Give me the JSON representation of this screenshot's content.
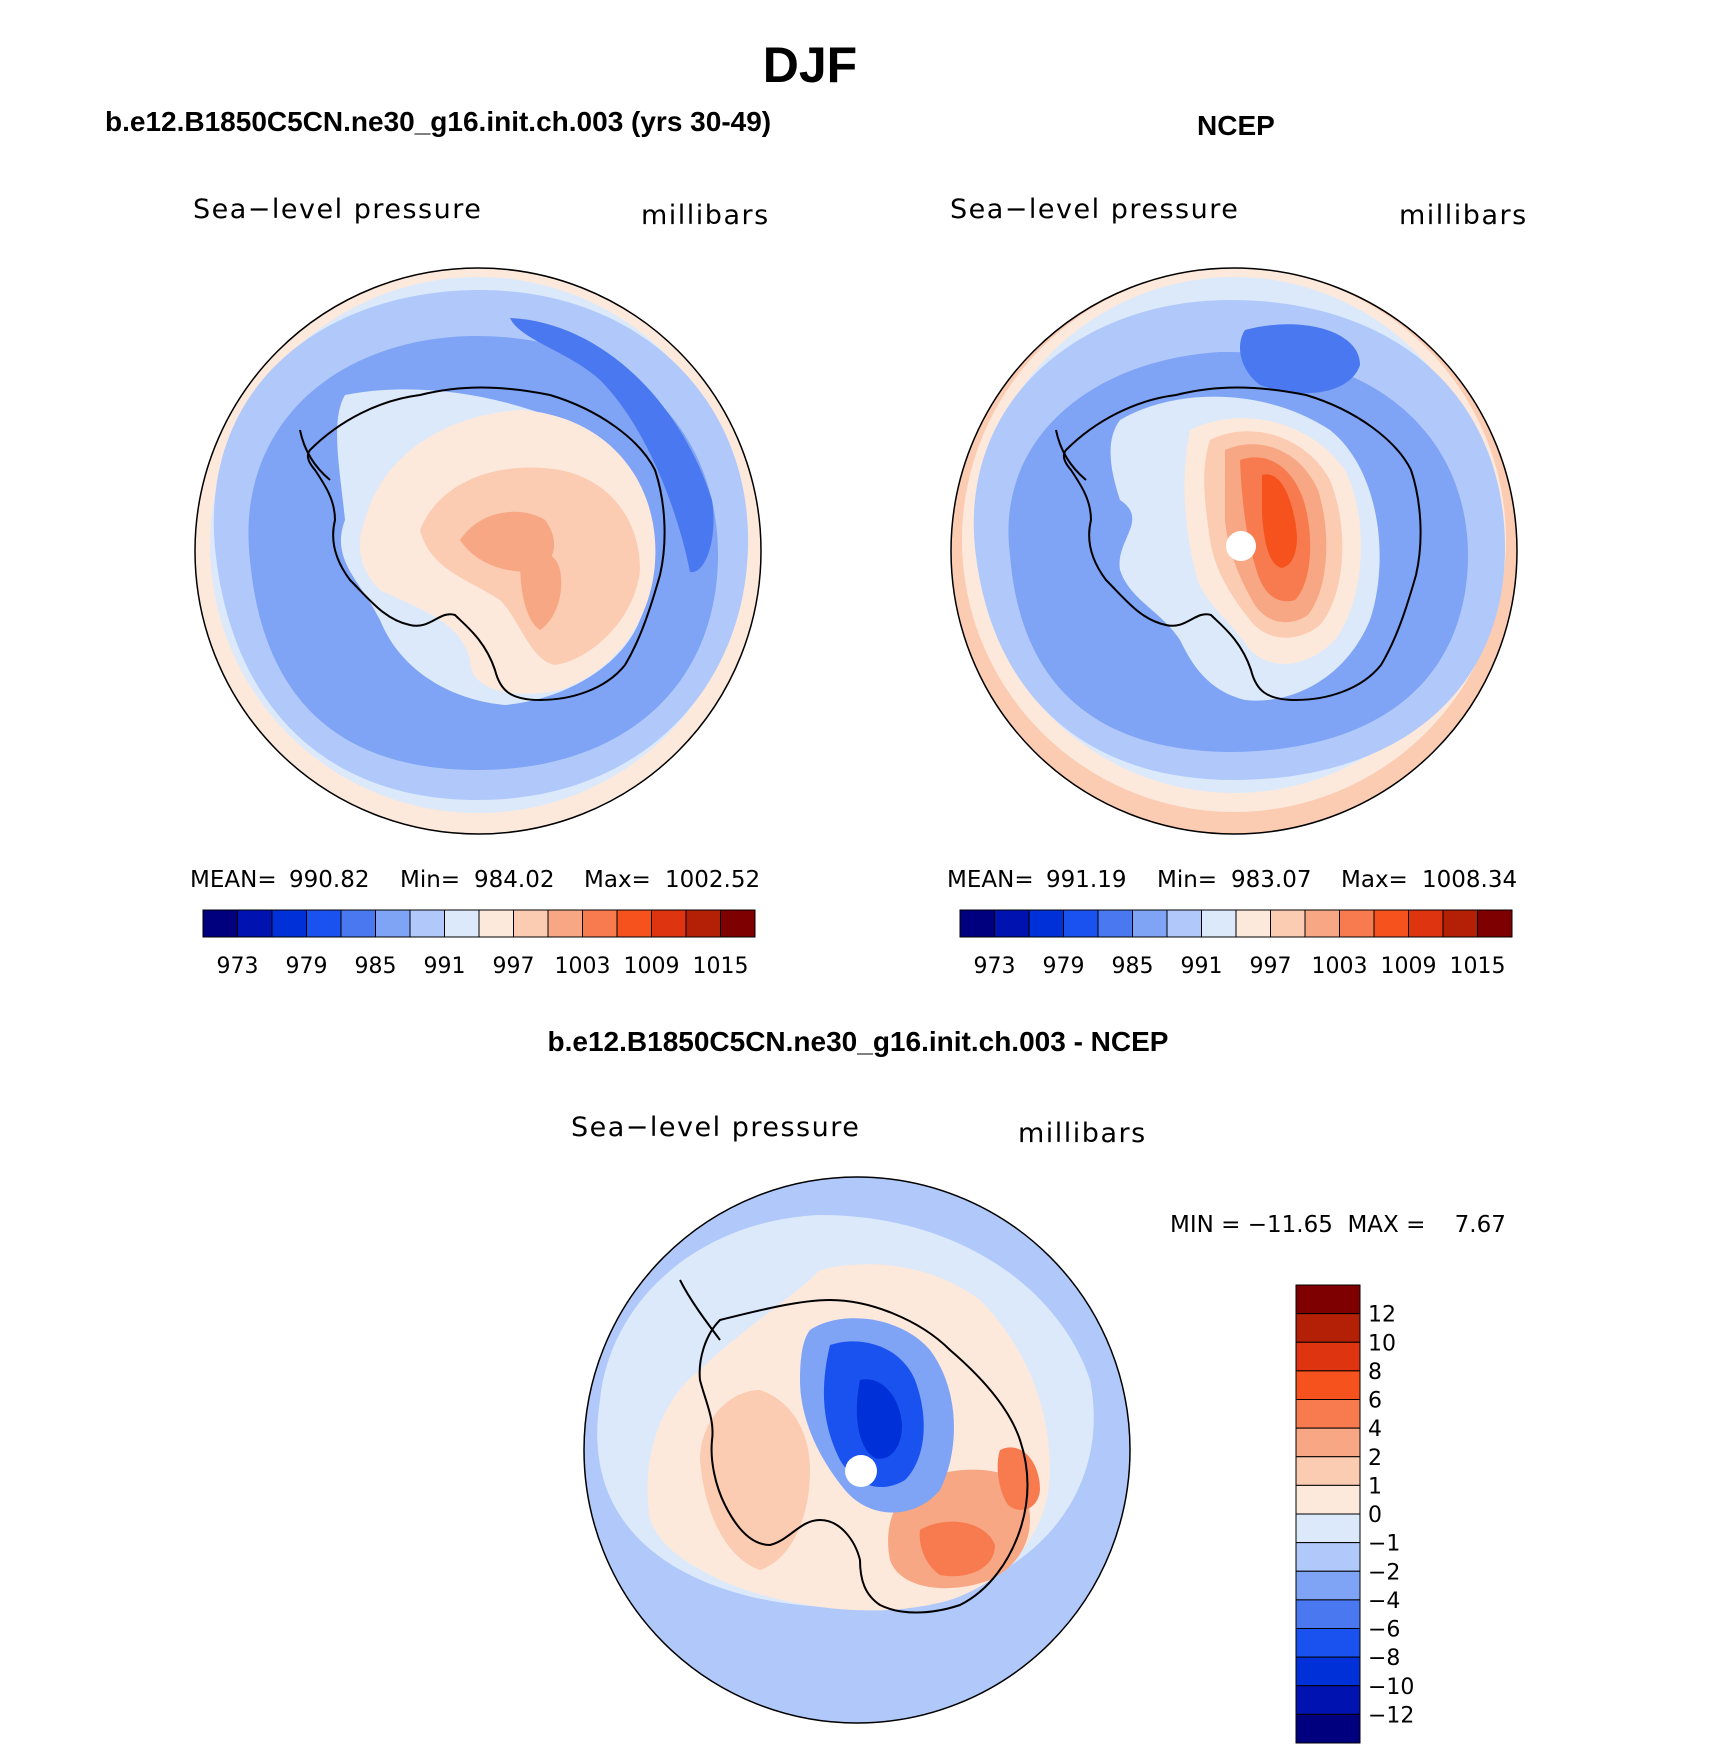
{
  "title": "DJF",
  "panels": [
    {
      "heading": "b.e12.B1850C5CN.ne30_g16.init.ch.003 (yrs 30-49)",
      "variable": "Sea−level pressure",
      "units": "millibars",
      "mean_label": "MEAN=",
      "mean": "990.82",
      "min_label": "Min=",
      "min": "984.02",
      "max_label": "Max=",
      "max": "1002.52"
    },
    {
      "heading": "NCEP",
      "variable": "Sea−level pressure",
      "units": "millibars",
      "mean_label": "MEAN=",
      "mean": "991.19",
      "min_label": "Min=",
      "min": "983.07",
      "max_label": "Max=",
      "max": "1008.34"
    },
    {
      "heading": "b.e12.B1850C5CN.ne30_g16.init.ch.003 - NCEP",
      "variable": "Sea−level pressure",
      "units": "millibars",
      "minmax_text": "MIN = −11.65  MAX =    7.67"
    }
  ],
  "abs_colorbar": {
    "colors": [
      "#00007f",
      "#0012b0",
      "#0030d8",
      "#1a52f0",
      "#4a78f0",
      "#7fa3f5",
      "#b0c9fa",
      "#dbe9fb",
      "#fce9dc",
      "#fbcbb2",
      "#f7a784",
      "#f87b50",
      "#f5521e",
      "#de3510",
      "#b42006",
      "#7f0000"
    ],
    "labels": [
      "973",
      "979",
      "985",
      "991",
      "997",
      "1003",
      "1009",
      "1015"
    ]
  },
  "diff_colorbar": {
    "colors": [
      "#7f0000",
      "#b42006",
      "#de3510",
      "#f5521e",
      "#f87b50",
      "#f7a784",
      "#fbcbb2",
      "#fce9dc",
      "#dbe9fb",
      "#b0c9fa",
      "#7fa3f5",
      "#4a78f0",
      "#1a52f0",
      "#0030d8",
      "#0012b0",
      "#00007f"
    ],
    "labels": [
      "12",
      "10",
      "8",
      "6",
      "4",
      "2",
      "1",
      "0",
      "−1",
      "−2",
      "−4",
      "−6",
      "−8",
      "−10",
      "−12"
    ]
  }
}
